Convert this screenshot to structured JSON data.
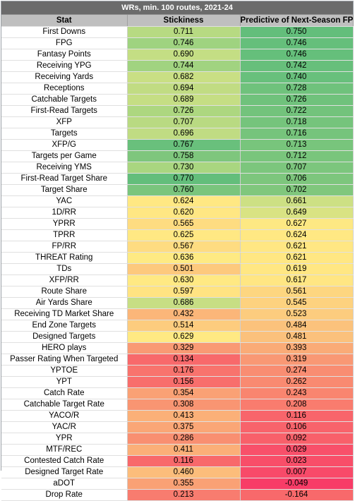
{
  "title": "WRs, min. 100 routes, 2021-24",
  "headers": [
    "Stat",
    "Stickiness",
    "Predictive of Next-Season FPG"
  ],
  "rows": [
    {
      "stat": "First Downs",
      "stickiness": "0.711",
      "predictive": "0.750",
      "s_color": "#b7da82",
      "p_color": "#63be7b"
    },
    {
      "stat": "FPG",
      "stickiness": "0.746",
      "predictive": "0.746",
      "s_color": "#9fd380",
      "p_color": "#65bf7b"
    },
    {
      "stat": "Fantasy Points",
      "stickiness": "0.690",
      "predictive": "0.746",
      "s_color": "#c4de84",
      "p_color": "#65bf7b"
    },
    {
      "stat": "Receiving YPG",
      "stickiness": "0.744",
      "predictive": "0.742",
      "s_color": "#a1d380",
      "p_color": "#67bf7b"
    },
    {
      "stat": "Receiving Yards",
      "stickiness": "0.682",
      "predictive": "0.740",
      "s_color": "#c9df84",
      "p_color": "#68c07c"
    },
    {
      "stat": "Receptions",
      "stickiness": "0.694",
      "predictive": "0.728",
      "s_color": "#c1dc83",
      "p_color": "#6fc27c"
    },
    {
      "stat": "Catchable Targets",
      "stickiness": "0.689",
      "predictive": "0.726",
      "s_color": "#c5de84",
      "p_color": "#70c27c"
    },
    {
      "stat": "First-Read Targets",
      "stickiness": "0.726",
      "predictive": "0.722",
      "s_color": "#add780",
      "p_color": "#73c37c"
    },
    {
      "stat": "XFP",
      "stickiness": "0.707",
      "predictive": "0.718",
      "s_color": "#b9da82",
      "p_color": "#75c47c"
    },
    {
      "stat": "Targets",
      "stickiness": "0.696",
      "predictive": "0.716",
      "s_color": "#c0dc83",
      "p_color": "#76c47c"
    },
    {
      "stat": "XFP/G",
      "stickiness": "0.767",
      "predictive": "0.713",
      "s_color": "#69c07c",
      "p_color": "#78c57c"
    },
    {
      "stat": "Targets per Game",
      "stickiness": "0.758",
      "predictive": "0.712",
      "s_color": "#7ec67d",
      "p_color": "#79c57c"
    },
    {
      "stat": "Receiving YMS",
      "stickiness": "0.730",
      "predictive": "0.707",
      "s_color": "#a9d680",
      "p_color": "#7cc67d"
    },
    {
      "stat": "First-Read Target Share",
      "stickiness": "0.770",
      "predictive": "0.706",
      "s_color": "#63be7b",
      "p_color": "#7dc67d"
    },
    {
      "stat": "Target Share",
      "stickiness": "0.760",
      "predictive": "0.702",
      "s_color": "#7ac57d",
      "p_color": "#80c77d"
    },
    {
      "stat": "YAC",
      "stickiness": "0.624",
      "predictive": "0.661",
      "s_color": "#ffe883",
      "p_color": "#cde084"
    },
    {
      "stat": "1D/RR",
      "stickiness": "0.620",
      "predictive": "0.649",
      "s_color": "#ffe783",
      "p_color": "#d9e383"
    },
    {
      "stat": "YPRR",
      "stickiness": "0.565",
      "predictive": "0.627",
      "s_color": "#fedc81",
      "p_color": "#fde883"
    },
    {
      "stat": "TPRR",
      "stickiness": "0.625",
      "predictive": "0.624",
      "s_color": "#ffe883",
      "p_color": "#ffe883"
    },
    {
      "stat": "FP/RR",
      "stickiness": "0.567",
      "predictive": "0.621",
      "s_color": "#fedc81",
      "p_color": "#ffe783"
    },
    {
      "stat": "THREAT Rating",
      "stickiness": "0.636",
      "predictive": "0.621",
      "s_color": "#feea83",
      "p_color": "#ffe783"
    },
    {
      "stat": "TDs",
      "stickiness": "0.501",
      "predictive": "0.619",
      "s_color": "#fdc97d",
      "p_color": "#ffe783"
    },
    {
      "stat": "XFP/RR",
      "stickiness": "0.630",
      "predictive": "0.617",
      "s_color": "#ffe983",
      "p_color": "#ffe683"
    },
    {
      "stat": "Route Share",
      "stickiness": "0.597",
      "predictive": "0.561",
      "s_color": "#ffe382",
      "p_color": "#fdd680"
    },
    {
      "stat": "Air Yards Share",
      "stickiness": "0.686",
      "predictive": "0.545",
      "s_color": "#c7de84",
      "p_color": "#fdd27f"
    },
    {
      "stat": "Receiving TD Market Share",
      "stickiness": "0.432",
      "predictive": "0.523",
      "s_color": "#fbb679",
      "p_color": "#fccc7e"
    },
    {
      "stat": "End Zone Targets",
      "stickiness": "0.514",
      "predictive": "0.484",
      "s_color": "#fdcc7e",
      "p_color": "#fbc27c"
    },
    {
      "stat": "Designed Targets",
      "stickiness": "0.629",
      "predictive": "0.481",
      "s_color": "#ffe983",
      "p_color": "#fbc17c"
    },
    {
      "stat": "HERO plays",
      "stickiness": "0.329",
      "predictive": "0.393",
      "s_color": "#f99a74",
      "p_color": "#faab77"
    },
    {
      "stat": "Passer Rating When Targeted",
      "stickiness": "0.134",
      "predictive": "0.319",
      "s_color": "#f8696b",
      "p_color": "#f99874"
    },
    {
      "stat": "YPTOE",
      "stickiness": "0.176",
      "predictive": "0.274",
      "s_color": "#f8736d",
      "p_color": "#f98d72"
    },
    {
      "stat": "YPT",
      "stickiness": "0.156",
      "predictive": "0.262",
      "s_color": "#f86e6c",
      "p_color": "#f98a71"
    },
    {
      "stat": "Catch Rate",
      "stickiness": "0.354",
      "predictive": "0.243",
      "s_color": "#faa175",
      "p_color": "#f9856f"
    },
    {
      "stat": "Catchable Target Rate",
      "stickiness": "0.308",
      "predictive": "0.208",
      "s_color": "#f99572",
      "p_color": "#f97c6e"
    },
    {
      "stat": "YACO/R",
      "stickiness": "0.413",
      "predictive": "0.116",
      "s_color": "#fbb078",
      "p_color": "#f8656b"
    },
    {
      "stat": "YAC/R",
      "stickiness": "0.375",
      "predictive": "0.106",
      "s_color": "#faa676",
      "p_color": "#f8636b"
    },
    {
      "stat": "YPR",
      "stickiness": "0.286",
      "predictive": "0.092",
      "s_color": "#f98f71",
      "p_color": "#f8606a"
    },
    {
      "stat": "MTF/REC",
      "stickiness": "0.411",
      "predictive": "0.029",
      "s_color": "#fbaf78",
      "p_color": "#f8506a"
    },
    {
      "stat": "Contested Catch Rate",
      "stickiness": "0.116",
      "predictive": "0.023",
      "s_color": "#f8696b",
      "p_color": "#f84e69"
    },
    {
      "stat": "Designed Target Rate",
      "stickiness": "0.460",
      "predictive": "0.007",
      "s_color": "#fcbd7b",
      "p_color": "#f84a69"
    },
    {
      "stat": "aDOT",
      "stickiness": "0.355",
      "predictive": "-0.049",
      "s_color": "#faa175",
      "p_color": "#f83c67"
    },
    {
      "stat": "Drop Rate",
      "stickiness": "0.213",
      "predictive": "-0.164",
      "s_color": "#f87c6f",
      "p_color": "#f8696b"
    }
  ]
}
